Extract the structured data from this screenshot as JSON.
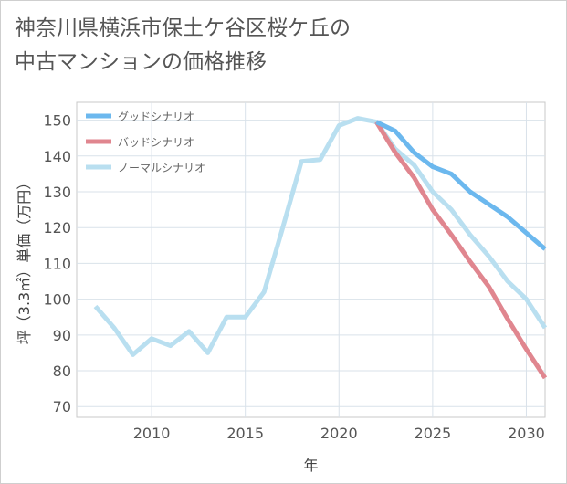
{
  "title": "神奈川県横浜市保土ケ谷区桜ケ丘の\n中古マンションの価格推移",
  "chart_data": {
    "type": "line",
    "xlabel": "年",
    "ylabel": "坪（3.3㎡）単価（万円）",
    "xlim": [
      2006,
      2031
    ],
    "ylim": [
      67,
      155
    ],
    "xticks": [
      2010,
      2015,
      2020,
      2025,
      2030
    ],
    "yticks": [
      70,
      80,
      90,
      100,
      110,
      120,
      130,
      140,
      150
    ],
    "grid": true,
    "legend_position": "top-left",
    "series": [
      {
        "name": "グッドシナリオ",
        "color": "#6cb8ee",
        "x": [
          2022,
          2023,
          2024,
          2025,
          2026,
          2027,
          2028,
          2029,
          2030,
          2031
        ],
        "y": [
          149.5,
          147,
          141,
          137,
          135,
          130,
          126.5,
          123,
          118.5,
          114
        ]
      },
      {
        "name": "バッドシナリオ",
        "color": "#e0868f",
        "x": [
          2022,
          2023,
          2024,
          2025,
          2026,
          2027,
          2028,
          2029,
          2030,
          2031
        ],
        "y": [
          149.5,
          141,
          134,
          125,
          118,
          110.5,
          103.5,
          94.5,
          86,
          78
        ]
      },
      {
        "name": "ノーマルシナリオ",
        "color": "#b9dff0",
        "x": [
          2007,
          2008,
          2009,
          2010,
          2011,
          2012,
          2013,
          2014,
          2015,
          2016,
          2017,
          2018,
          2019,
          2020,
          2021,
          2022,
          2023,
          2024,
          2025,
          2026,
          2027,
          2028,
          2029,
          2030,
          2031
        ],
        "y": [
          98,
          92,
          84.5,
          89,
          87,
          91,
          85,
          95,
          95,
          102,
          120,
          138.5,
          139,
          148.5,
          150.5,
          149.5,
          142,
          137.5,
          130,
          125,
          118,
          112,
          105,
          100,
          92
        ]
      }
    ]
  }
}
